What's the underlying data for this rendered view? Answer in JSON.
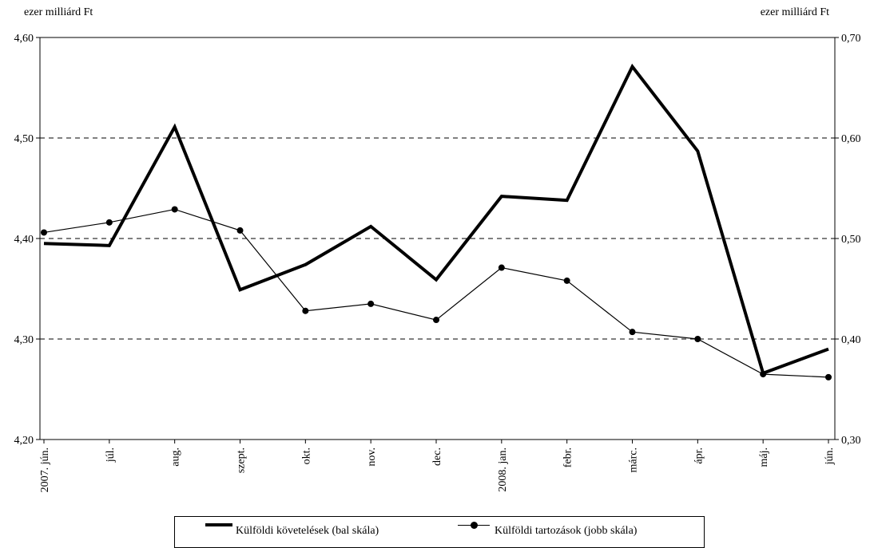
{
  "units": {
    "left": "ezer milliárd Ft",
    "right": "ezer milliárd Ft"
  },
  "legend": {
    "series1": "Külföldi követelések (bal skála)",
    "series2": "Külföldi tartozások (jobb skála)"
  },
  "chart_data": {
    "type": "line",
    "categories": [
      "2007. jún.",
      "júl.",
      "aug.",
      "szept.",
      "okt.",
      "nov.",
      "dec.",
      "2008. jan.",
      "febr.",
      "márc.",
      "ápr.",
      "máj.",
      "jún."
    ],
    "y_left": {
      "min": 4.2,
      "max": 4.6,
      "ticks": [
        "4,20",
        "4,30",
        "4,40",
        "4,50",
        "4,60"
      ]
    },
    "y_right": {
      "min": 0.3,
      "max": 0.7,
      "ticks": [
        "0,30",
        "0,40",
        "0,50",
        "0,60",
        "0,70"
      ]
    },
    "grid": "horizontal dashed",
    "legend_position": "bottom",
    "series": [
      {
        "name": "Külföldi követelések (bal skála)",
        "axis": "left",
        "style": "thick",
        "color": "#000000",
        "values": [
          4.395,
          4.393,
          4.511,
          4.349,
          4.374,
          4.412,
          4.359,
          4.442,
          4.438,
          4.571,
          4.487,
          4.266,
          4.29
        ]
      },
      {
        "name": "Külföldi tartozások (jobb skála)",
        "axis": "right",
        "style": "thin-marker",
        "color": "#000000",
        "values": [
          0.506,
          0.516,
          0.529,
          0.508,
          0.428,
          0.435,
          0.419,
          0.471,
          0.458,
          0.407,
          0.4,
          0.365,
          0.362
        ]
      }
    ]
  }
}
